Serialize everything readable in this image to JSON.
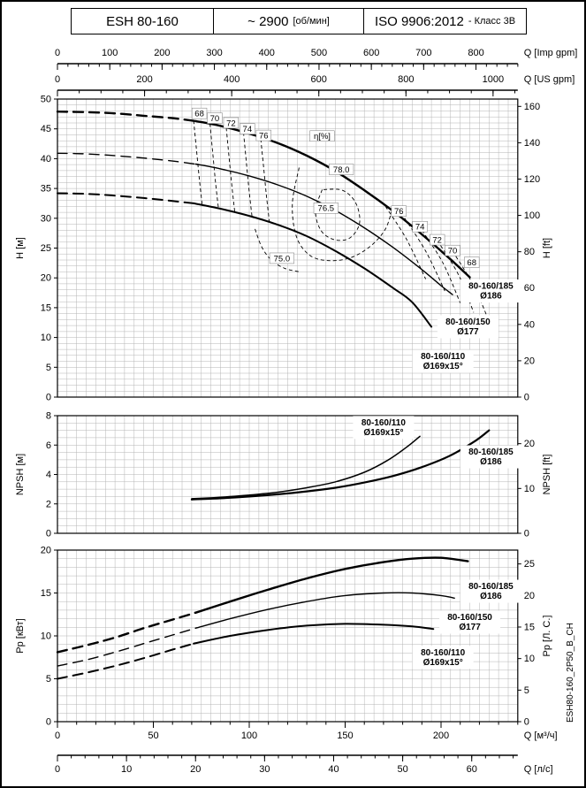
{
  "header": {
    "model": "ESH 80-160",
    "speed_value": "~ 2900",
    "speed_unit": "[об/мин]",
    "standard": "ISO 9906:2012",
    "standard_suffix": "- Класс 3В"
  },
  "side_code": "ESH80-160_2P50_B_CH",
  "flow_axes": [
    {
      "id": "imp",
      "label": "Q [Imp gpm]",
      "ticks": [
        0,
        100,
        200,
        300,
        400,
        500,
        600,
        700,
        800
      ],
      "per_m3h": 3.6662,
      "minor": 20
    },
    {
      "id": "us",
      "label": "Q [US gpm]",
      "ticks": [
        0,
        200,
        400,
        600,
        800,
        1000
      ],
      "per_m3h": 4.4029,
      "minor": 50
    },
    {
      "id": "m3h",
      "label": "Q [м³/ч]",
      "ticks": [
        0,
        50,
        100,
        150,
        200
      ],
      "per_m3h": 1,
      "minor": 10
    },
    {
      "id": "ls",
      "label": "Q [л/с]",
      "ticks": [
        0,
        10,
        20,
        30,
        40,
        50,
        60
      ],
      "per_m3h": 0.27778,
      "minor": 2
    }
  ],
  "chart_data": [
    {
      "id": "head",
      "type": "line",
      "ylabel_left": "H [м]",
      "ylabel_right": "H [ft]",
      "xlim": [
        0,
        240
      ],
      "ylim": [
        0,
        50
      ],
      "yticks_left": [
        0,
        5,
        10,
        15,
        20,
        25,
        30,
        35,
        40,
        45,
        50
      ],
      "yticks_right": [
        0,
        20,
        40,
        60,
        80,
        100,
        120,
        140,
        160
      ],
      "right_factor": 0.3048,
      "series": [
        {
          "name": "80-160/185 Ø186",
          "stroke_width": 2.4,
          "dashed_points": [
            [
              0,
              47.9
            ],
            [
              15,
              47.8
            ],
            [
              30,
              47.6
            ],
            [
              45,
              47.2
            ],
            [
              60,
              46.8
            ],
            [
              72,
              46.3
            ]
          ],
          "solid_points": [
            [
              72,
              46.3
            ],
            [
              85,
              45.5
            ],
            [
              100,
              44.2
            ],
            [
              115,
              42.6
            ],
            [
              130,
              40.5
            ],
            [
              145,
              37.9
            ],
            [
              160,
              34.7
            ],
            [
              175,
              31.2
            ],
            [
              190,
              27.3
            ],
            [
              205,
              23.1
            ],
            [
              215,
              20.1
            ]
          ],
          "label_lines": [
            "80-160/185",
            "Ø186"
          ],
          "label_pos": [
            226,
            17.8
          ]
        },
        {
          "name": "80-160/150 Ø177",
          "stroke_width": 1.4,
          "dashed_points": [
            [
              0,
              40.9
            ],
            [
              15,
              40.8
            ],
            [
              30,
              40.5
            ],
            [
              45,
              40.1
            ],
            [
              60,
              39.6
            ],
            [
              72,
              39.1
            ]
          ],
          "solid_points": [
            [
              72,
              39.1
            ],
            [
              85,
              38.3
            ],
            [
              100,
              37.1
            ],
            [
              115,
              35.6
            ],
            [
              130,
              33.7
            ],
            [
              145,
              31.3
            ],
            [
              160,
              28.4
            ],
            [
              175,
              25.1
            ],
            [
              190,
              21.4
            ],
            [
              200,
              18.7
            ],
            [
              206,
              17.2
            ]
          ],
          "label_lines": [
            "80-160/150",
            "Ø177"
          ],
          "label_pos": [
            214,
            11.8
          ]
        },
        {
          "name": "80-160/110 Ø169x15°",
          "stroke_width": 2.0,
          "dashed_points": [
            [
              0,
              34.2
            ],
            [
              15,
              34.1
            ],
            [
              30,
              33.8
            ],
            [
              45,
              33.4
            ],
            [
              60,
              32.9
            ],
            [
              71,
              32.5
            ]
          ],
          "solid_points": [
            [
              71,
              32.5
            ],
            [
              85,
              31.6
            ],
            [
              100,
              30.4
            ],
            [
              115,
              28.9
            ],
            [
              130,
              27.0
            ],
            [
              145,
              24.5
            ],
            [
              160,
              21.6
            ],
            [
              175,
              18.3
            ],
            [
              185,
              15.9
            ],
            [
              195,
              11.8
            ]
          ],
          "label_lines": [
            "80-160/110",
            "Ø169x15°"
          ],
          "label_pos": [
            201,
            6.0
          ]
        }
      ],
      "efficiency_label": {
        "text": "η[%]",
        "pos": [
          138,
          43.8
        ]
      },
      "efficiency_isolines": [
        {
          "value": "68",
          "label_pos": [
            74,
            47.6
          ],
          "points": [
            [
              71,
              46.4
            ],
            [
              72.5,
              41.5
            ],
            [
              74,
              36.5
            ],
            [
              75.5,
              32.1
            ]
          ]
        },
        {
          "value": "70",
          "label_pos": [
            82,
            46.8
          ],
          "points": [
            [
              79.5,
              45.9
            ],
            [
              81,
              40.8
            ],
            [
              82.5,
              35.8
            ],
            [
              84,
              31.5
            ]
          ]
        },
        {
          "value": "72",
          "label_pos": [
            90.5,
            46.0
          ],
          "points": [
            [
              88,
              45.2
            ],
            [
              89.5,
              40.2
            ],
            [
              91,
              35.2
            ],
            [
              92.5,
              30.9
            ]
          ]
        },
        {
          "value": "74",
          "label_pos": [
            99,
            45.0
          ],
          "points": [
            [
              97,
              44.4
            ],
            [
              98.5,
              39.4
            ],
            [
              100,
              34.4
            ],
            [
              101.5,
              30.1
            ]
          ]
        },
        {
          "value": "76",
          "label_pos": [
            107.5,
            43.9
          ],
          "points": [
            [
              106,
              43.3
            ],
            [
              107.5,
              38.5
            ],
            [
              109,
              33.7
            ],
            [
              110.5,
              29.4
            ]
          ]
        },
        {
          "value": "78.0",
          "label_pos": [
            148,
            38.2
          ],
          "points": [
            [
              138,
              34.8
            ],
            [
              134.5,
              31.2
            ],
            [
              137.5,
              27.9
            ],
            [
              144.5,
              26.4
            ],
            [
              152.5,
              26.7
            ],
            [
              157.5,
              29.2
            ],
            [
              155.5,
              32.6
            ],
            [
              148.5,
              34.7
            ],
            [
              138,
              34.8
            ]
          ]
        },
        {
          "value": "76.5",
          "label_pos": [
            140,
            31.7
          ],
          "points": [
            [
              126,
              38.5
            ],
            [
              122.5,
              32.5
            ],
            [
              124.5,
              27.0
            ],
            [
              131.5,
              23.8
            ],
            [
              141.5,
              22.9
            ],
            [
              153,
              23.4
            ],
            [
              163.5,
              25.4
            ],
            [
              171,
              28.2
            ],
            [
              174.5,
              31.5
            ]
          ]
        },
        {
          "value": "75.0",
          "label_pos": [
            117,
            23.3
          ],
          "points": [
            [
              103,
              28.2
            ],
            [
              106.5,
              25.2
            ],
            [
              111.5,
              23.0
            ],
            [
              118.5,
              21.6
            ],
            [
              126.5,
              21.0
            ]
          ]
        },
        {
          "value": "76",
          "label_pos": [
            178,
            31.2
          ],
          "points": [
            [
              171,
              32.0
            ],
            [
              182,
              26.5
            ],
            [
              192,
              19.8
            ]
          ]
        },
        {
          "value": "74",
          "label_pos": [
            189,
            28.6
          ],
          "points": [
            [
              181,
              30.0
            ],
            [
              192,
              24.5
            ],
            [
              202,
              17.8
            ]
          ]
        },
        {
          "value": "72",
          "label_pos": [
            198,
            26.4
          ],
          "points": [
            [
              190,
              28.0
            ],
            [
              201,
              22.5
            ],
            [
              210,
              15.8
            ]
          ]
        },
        {
          "value": "70",
          "label_pos": [
            206,
            24.6
          ],
          "points": [
            [
              198,
              26.3
            ],
            [
              209,
              20.6
            ],
            [
              217,
              14.2
            ]
          ]
        },
        {
          "value": "68",
          "label_pos": [
            216,
            22.6
          ],
          "points": [
            [
              206,
              24.5
            ],
            [
              217,
              18.7
            ],
            [
              225,
              12.7
            ]
          ]
        }
      ]
    },
    {
      "id": "npsh",
      "type": "line",
      "ylabel_left": "NPSH [м]",
      "ylabel_right": "NPSH [ft]",
      "xlim": [
        0,
        240
      ],
      "ylim": [
        0,
        8
      ],
      "yticks_left": [
        0,
        2,
        4,
        6,
        8
      ],
      "yticks_right": [
        0,
        10,
        20
      ],
      "right_factor": 0.3048,
      "series": [
        {
          "name": "80-160/185 Ø186",
          "stroke_width": 2.2,
          "solid_points": [
            [
              70,
              2.3
            ],
            [
              85,
              2.38
            ],
            [
              100,
              2.5
            ],
            [
              115,
              2.65
            ],
            [
              130,
              2.85
            ],
            [
              145,
              3.1
            ],
            [
              160,
              3.45
            ],
            [
              175,
              3.9
            ],
            [
              190,
              4.5
            ],
            [
              205,
              5.3
            ],
            [
              218,
              6.3
            ],
            [
              225,
              7.0
            ]
          ],
          "label_lines": [
            "80-160/185",
            "Ø186"
          ],
          "label_pos": [
            226,
            5.2
          ]
        },
        {
          "name": "80-160/110 Ø169x15°",
          "stroke_width": 1.5,
          "solid_points": [
            [
              70,
              2.35
            ],
            [
              85,
              2.45
            ],
            [
              100,
              2.6
            ],
            [
              115,
              2.8
            ],
            [
              130,
              3.1
            ],
            [
              145,
              3.5
            ],
            [
              160,
              4.15
            ],
            [
              172,
              4.95
            ],
            [
              182,
              5.85
            ],
            [
              189,
              6.6
            ]
          ],
          "label_lines": [
            "80-160/110",
            "Ø169x15°"
          ],
          "label_pos": [
            170,
            7.2
          ]
        }
      ]
    },
    {
      "id": "power",
      "type": "line",
      "ylabel_left": "Pp [кВт]",
      "ylabel_right": "Pp [Л. С.]",
      "xlim": [
        0,
        240
      ],
      "ylim": [
        0,
        20
      ],
      "yticks_left": [
        0,
        5,
        10,
        15,
        20
      ],
      "yticks_right": [
        0,
        5,
        10,
        15,
        20,
        25
      ],
      "right_factor": 0.7355,
      "series": [
        {
          "name": "80-160/185 Ø186",
          "stroke_width": 2.4,
          "dashed_points": [
            [
              0,
              8.1
            ],
            [
              15,
              8.9
            ],
            [
              30,
              9.8
            ],
            [
              45,
              10.9
            ],
            [
              60,
              11.9
            ],
            [
              72,
              12.7
            ]
          ],
          "solid_points": [
            [
              72,
              12.7
            ],
            [
              90,
              14.0
            ],
            [
              110,
              15.4
            ],
            [
              130,
              16.7
            ],
            [
              150,
              17.8
            ],
            [
              170,
              18.6
            ],
            [
              185,
              19.0
            ],
            [
              200,
              19.1
            ],
            [
              214,
              18.7
            ]
          ],
          "label_lines": [
            "80-160/185",
            "Ø186"
          ],
          "label_pos": [
            226,
            15.2
          ]
        },
        {
          "name": "80-160/150 Ø177",
          "stroke_width": 1.4,
          "dashed_points": [
            [
              0,
              6.5
            ],
            [
              15,
              7.2
            ],
            [
              30,
              8.1
            ],
            [
              45,
              9.1
            ],
            [
              60,
              10.1
            ],
            [
              72,
              10.9
            ]
          ],
          "solid_points": [
            [
              72,
              10.9
            ],
            [
              90,
              12.0
            ],
            [
              110,
              13.1
            ],
            [
              130,
              14.0
            ],
            [
              150,
              14.7
            ],
            [
              170,
              15.0
            ],
            [
              185,
              15.0
            ],
            [
              200,
              14.7
            ],
            [
              207,
              14.4
            ]
          ],
          "label_lines": [
            "80-160/150",
            "Ø177"
          ],
          "label_pos": [
            215,
            11.6
          ]
        },
        {
          "name": "80-160/110 Ø169x15°",
          "stroke_width": 2.0,
          "dashed_points": [
            [
              0,
              5.0
            ],
            [
              15,
              5.7
            ],
            [
              30,
              6.5
            ],
            [
              45,
              7.4
            ],
            [
              60,
              8.4
            ],
            [
              71,
              9.1
            ]
          ],
          "solid_points": [
            [
              71,
              9.1
            ],
            [
              90,
              10.0
            ],
            [
              110,
              10.7
            ],
            [
              130,
              11.2
            ],
            [
              150,
              11.4
            ],
            [
              170,
              11.3
            ],
            [
              185,
              11.1
            ],
            [
              196,
              10.8
            ]
          ],
          "label_lines": [
            "80-160/110",
            "Ø169x15°"
          ],
          "label_pos": [
            201,
            7.5
          ]
        }
      ]
    }
  ]
}
